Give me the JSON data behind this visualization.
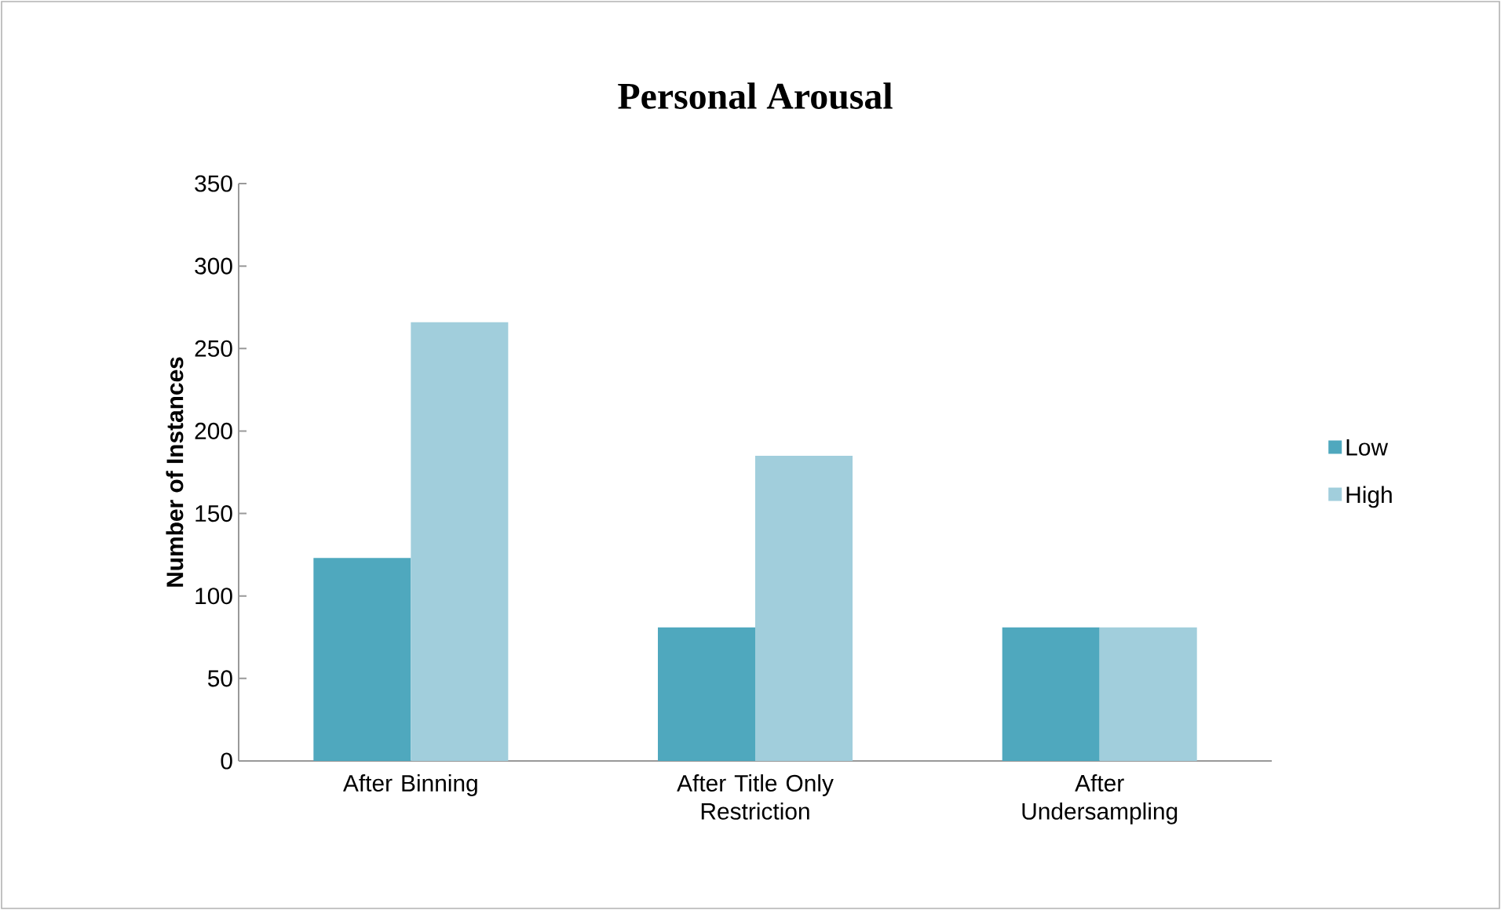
{
  "chart_data": {
    "type": "bar",
    "title": "Personal Arousal",
    "ylabel": "Number of Instances",
    "categories": [
      "After Binning",
      "After Title Only Restriction",
      "After Undersampling"
    ],
    "series": [
      {
        "name": "Low",
        "color": "#4fa8be",
        "values": [
          123,
          81,
          81
        ]
      },
      {
        "name": "High",
        "color": "#a1cedc",
        "values": [
          266,
          185,
          81
        ]
      }
    ],
    "ylim": [
      0,
      350
    ],
    "yticks": [
      0,
      50,
      100,
      150,
      200,
      250,
      300,
      350
    ],
    "legend": "right"
  }
}
